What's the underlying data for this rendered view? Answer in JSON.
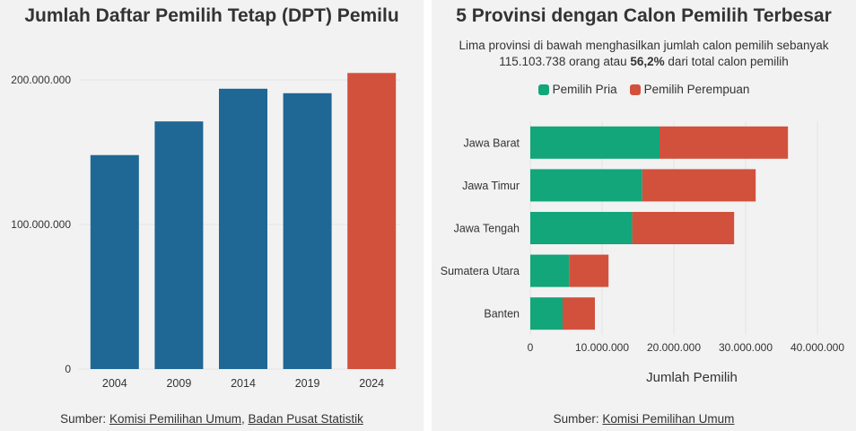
{
  "left": {
    "title": "Jumlah Daftar Pemilih Tetap (DPT) Pemilu",
    "source_prefix": "Sumber: ",
    "source_link1": "Komisi Pemilihan Umum",
    "source_sep": ", ",
    "source_link2": "Badan Pusat Statistik"
  },
  "right": {
    "title": "5 Provinsi dengan Calon Pemilih Terbesar",
    "subtitle_line1": "Lima provinsi di bawah menghasilkan jumlah calon pemilih sebanyak",
    "subtitle_line2_a": "115.103.738 orang atau ",
    "subtitle_line2_b": "56,2%",
    "subtitle_line2_c": " dari total calon pemilih",
    "xlabel": "Jumlah Pemilih",
    "source_prefix": "Sumber: ",
    "source_link1": "Komisi Pemilihan Umum"
  },
  "colors": {
    "blue": "#1f6794",
    "red": "#d2513d",
    "green": "#12a67a",
    "grid": "#e4e4e4"
  },
  "chart_data": [
    {
      "type": "bar",
      "title": "Jumlah Daftar Pemilih Tetap (DPT) Pemilu",
      "categories": [
        "2004",
        "2009",
        "2014",
        "2019",
        "2024"
      ],
      "values": [
        148000000,
        171300000,
        193900000,
        190800000,
        204800000
      ],
      "highlight_index": 4,
      "ylim": [
        0,
        200000000
      ],
      "yticks": [
        0,
        100000000,
        200000000
      ],
      "ytick_labels": [
        "0",
        "100.000.000",
        "200.000.000"
      ],
      "grid": true
    },
    {
      "type": "bar",
      "orientation": "horizontal",
      "stacked": true,
      "title": "5 Provinsi dengan Calon Pemilih Terbesar",
      "categories": [
        "Jawa Barat",
        "Jawa Timur",
        "Jawa Tengah",
        "Sumatera Utara",
        "Banten"
      ],
      "series": [
        {
          "name": "Pemilih Pria",
          "values": [
            18000000,
            15600000,
            14200000,
            5400000,
            4500000
          ]
        },
        {
          "name": "Pemilih Perempuan",
          "values": [
            17900000,
            15800000,
            14200000,
            5500000,
            4500000
          ]
        }
      ],
      "xlim": [
        0,
        40000000
      ],
      "xticks": [
        0,
        10000000,
        20000000,
        30000000,
        40000000
      ],
      "xtick_labels": [
        "0",
        "10.000.000",
        "20.000.000",
        "30.000.000",
        "40.000.000"
      ],
      "xlabel": "Jumlah Pemilih",
      "legend": "top-center",
      "grid": true
    }
  ]
}
